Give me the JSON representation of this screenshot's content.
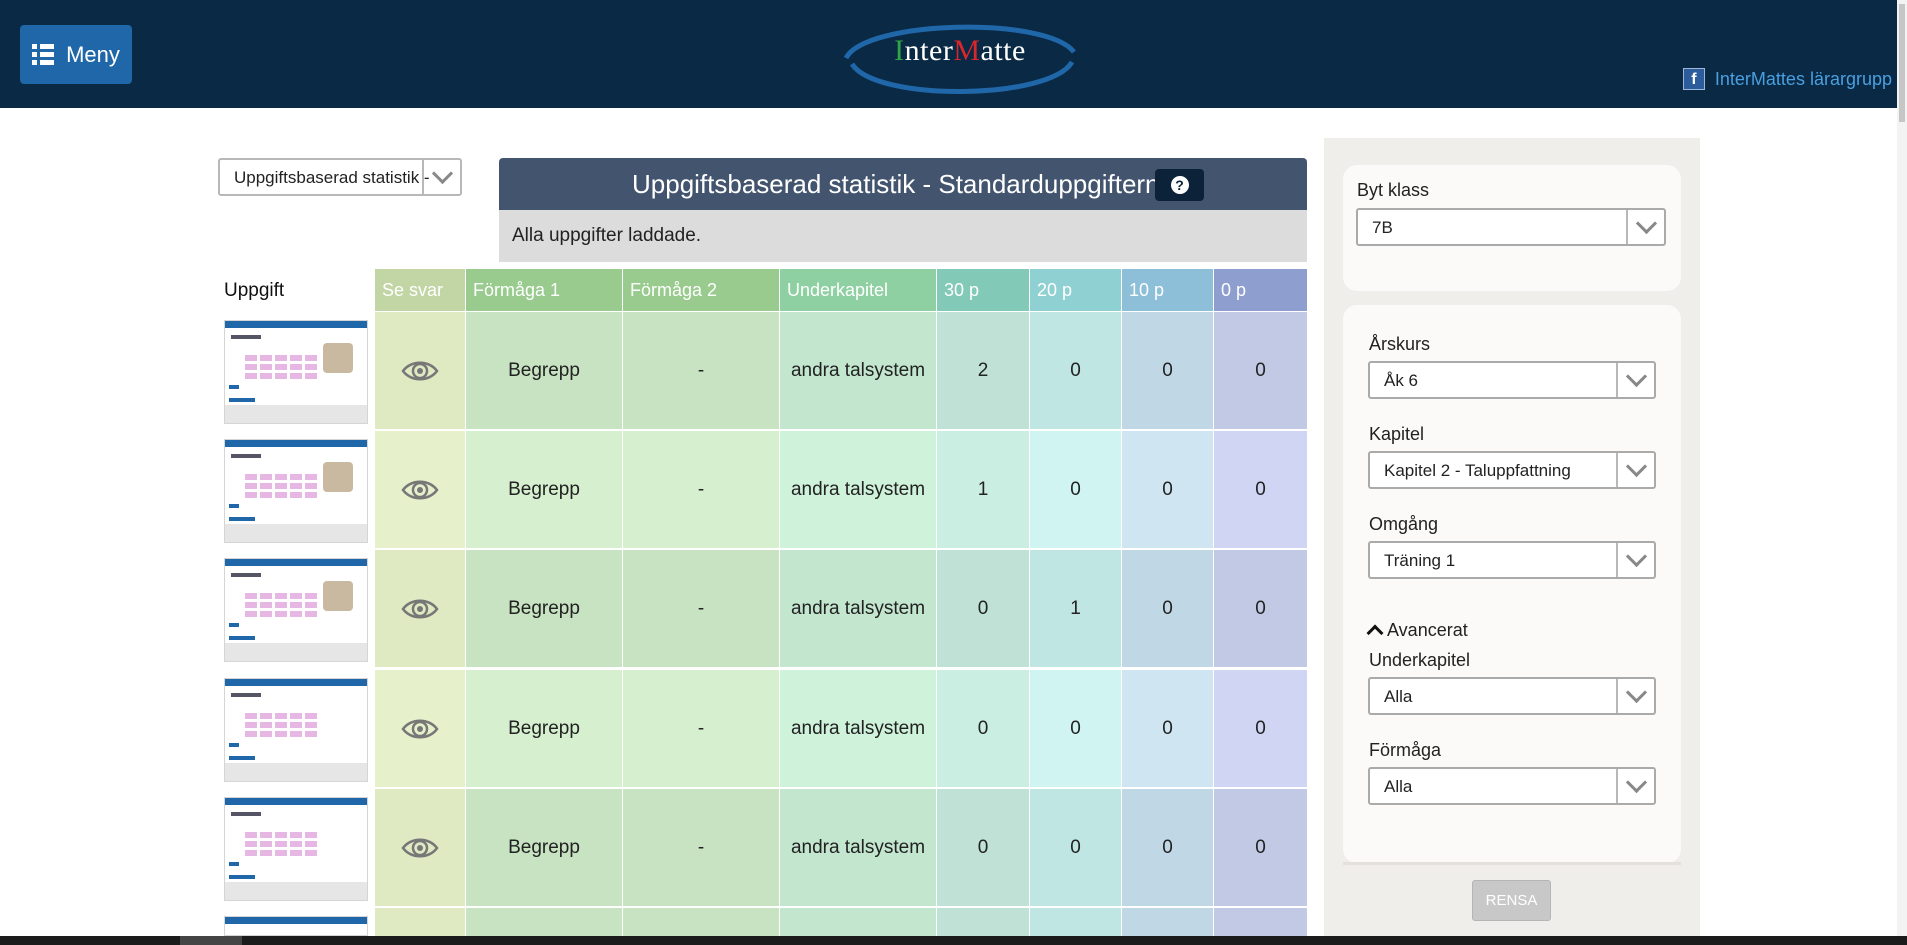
{
  "header": {
    "menu_label": "Meny",
    "logo": {
      "inter_i": "I",
      "inter_rest": "nter",
      "matte_m": "M",
      "matte_rest": "atte"
    },
    "fb_icon_label": "f",
    "fb_link": "InterMattes lärargrupp"
  },
  "stat_select": {
    "value": "Uppgiftsbaserad statistik -"
  },
  "title": "Uppgiftsbaserad statistik - Standarduppgifterna",
  "help_label": "?",
  "status": "Alla uppgifter laddade.",
  "table": {
    "uppgift_header": "Uppgift",
    "headers": [
      "Se svar",
      "Förmåga 1",
      "Förmåga 2",
      "Underkapitel",
      "30 p",
      "20 p",
      "10 p",
      "0 p"
    ],
    "rows": [
      {
        "formaga1": "Begrepp",
        "formaga2": "-",
        "underkapitel": "andra talsystem",
        "p30": "2",
        "p20": "0",
        "p10": "0",
        "p0": "0"
      },
      {
        "formaga1": "Begrepp",
        "formaga2": "-",
        "underkapitel": "andra talsystem",
        "p30": "1",
        "p20": "0",
        "p10": "0",
        "p0": "0"
      },
      {
        "formaga1": "Begrepp",
        "formaga2": "-",
        "underkapitel": "andra talsystem",
        "p30": "0",
        "p20": "1",
        "p10": "0",
        "p0": "0"
      },
      {
        "formaga1": "Begrepp",
        "formaga2": "-",
        "underkapitel": "andra talsystem",
        "p30": "0",
        "p20": "0",
        "p10": "0",
        "p0": "0"
      },
      {
        "formaga1": "Begrepp",
        "formaga2": "-",
        "underkapitel": "andra talsystem",
        "p30": "0",
        "p20": "0",
        "p10": "0",
        "p0": "0"
      }
    ]
  },
  "sidebar": {
    "byt_klass_label": "Byt klass",
    "byt_klass_value": "7B",
    "arskurs_label": "Årskurs",
    "arskurs_value": "Åk 6",
    "kapitel_label": "Kapitel",
    "kapitel_value": "Kapitel 2 - Taluppfattning",
    "omgang_label": "Omgång",
    "omgang_value": "Träning 1",
    "avancerat_label": "Avancerat",
    "underkapitel_label": "Underkapitel",
    "underkapitel_value": "Alla",
    "formaga_label": "Förmåga",
    "formaga_value": "Alla",
    "rensa_label": "RENSA"
  },
  "colors": {
    "header_bg": "#0a2944",
    "menu_btn": "#1f67a8",
    "title_bar": "#42546e",
    "col_se_svar": "#c2d5a4",
    "col_formaga": "#98cb8d",
    "col_underkapitel": "#8fd0a2",
    "col_30p": "#82c9b7",
    "col_20p": "#8fd1d2",
    "col_10p": "#8dbfd8",
    "col_0p": "#8e9ecf"
  }
}
